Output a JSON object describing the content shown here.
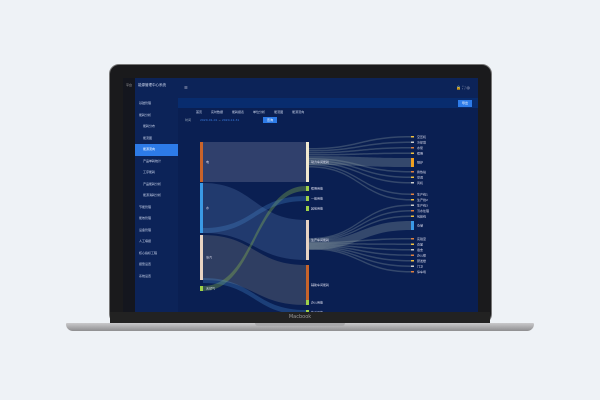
{
  "device_label": "Macbook",
  "app": {
    "title": "能源管理中心系统",
    "rail_label": "平台"
  },
  "sidebar": {
    "items": [
      {
        "label": "基础管理",
        "sub": false
      },
      {
        "label": "能耗分析",
        "sub": false
      },
      {
        "label": "能耗分布",
        "sub": true
      },
      {
        "label": "能流图",
        "sub": true
      },
      {
        "label": "能源流向",
        "sub": true,
        "active": true
      },
      {
        "label": "产品单耗统计",
        "sub": true
      },
      {
        "label": "工序能耗",
        "sub": true
      },
      {
        "label": "产品能耗分析",
        "sub": true
      },
      {
        "label": "能源消耗分析",
        "sub": true
      },
      {
        "label": "节能管理",
        "sub": false
      },
      {
        "label": "能效管理",
        "sub": false
      },
      {
        "label": "设备管理",
        "sub": false
      },
      {
        "label": "人工填报",
        "sub": false
      },
      {
        "label": "核心指标工程",
        "sub": false
      },
      {
        "label": "报警设置",
        "sub": false
      },
      {
        "label": "系统设置",
        "sub": false
      }
    ]
  },
  "tabs": [
    "首页",
    "实时数据",
    "能耗报表",
    "单位分析",
    "能流图",
    "能源流向"
  ],
  "header_button": "导出",
  "filter": {
    "label": "时间",
    "start": "2020-01-01",
    "end": "2020-12-31",
    "query": "查询"
  },
  "sankey": {
    "colors": {
      "orange": "#c8632a",
      "blue": "#3a9ae6",
      "beige": "#e9d4c3",
      "green": "#9ed14a",
      "cream": "#f1e9cf",
      "amber": "#f0a020"
    },
    "sources": [
      {
        "label": "电",
        "color": "orange"
      },
      {
        "label": "水",
        "color": "blue"
      },
      {
        "label": "蒸汽",
        "color": "beige"
      },
      {
        "label": "天然气",
        "color": "green"
      }
    ],
    "middle": [
      {
        "label": "动力车间能耗",
        "color": "cream"
      },
      {
        "label": "照明用能",
        "color": "green"
      },
      {
        "label": "一般用能",
        "color": "green"
      },
      {
        "label": "其他用能",
        "color": "green"
      },
      {
        "label": "生产车间能耗",
        "color": "beige"
      },
      {
        "label": "辅助车间能耗",
        "color": "orange"
      },
      {
        "label": "办公用能",
        "color": "green"
      },
      {
        "label": "生活用能",
        "color": "green"
      }
    ],
    "targets": [
      "空压机",
      "冷却塔",
      "水泵",
      "照明",
      "锅炉",
      "换热站",
      "空调",
      "风机",
      "生产线1",
      "生产线2",
      "生产线3",
      "污水处理",
      "包装线",
      "仓储",
      "实验室",
      "食堂",
      "宿舍",
      "办公楼",
      "研发楼",
      "门卫",
      "停车场"
    ]
  }
}
